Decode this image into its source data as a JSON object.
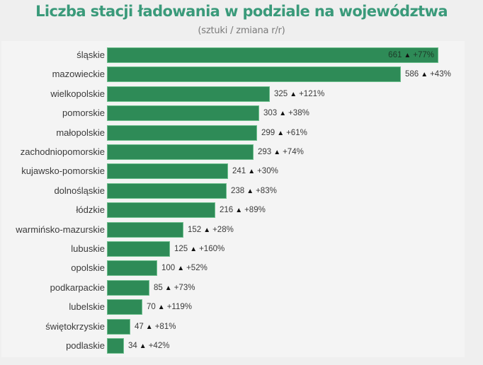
{
  "title": "Liczba stacji ładowania w podziale na województwa",
  "subtitle": "(sztuki / zmiana r/r)",
  "colors": {
    "bar": "#2e8b57",
    "title": "#3a9a7a",
    "background": "#efefef",
    "panel": "#f4f4f4"
  },
  "chart_data": {
    "type": "bar",
    "orientation": "horizontal",
    "title": "Liczba stacji ładowania w podziale na województwa",
    "subtitle": "(sztuki / zmiana r/r)",
    "xlabel": "",
    "ylabel": "",
    "grid": false,
    "legend": null,
    "xlim": [
      0,
      661
    ],
    "categories": [
      "śląskie",
      "mazowieckie",
      "wielkopolskie",
      "pomorskie",
      "małopolskie",
      "zachodniopomorskie",
      "kujawsko-pomorskie",
      "dolnośląskie",
      "łódzkie",
      "warmińsko-mazurskie",
      "lubuskie",
      "opolskie",
      "podkarpackie",
      "lubelskie",
      "świętokrzyskie",
      "podlaskie"
    ],
    "series": [
      {
        "name": "Liczba stacji (sztuki)",
        "values": [
          661,
          586,
          325,
          303,
          299,
          293,
          241,
          238,
          216,
          152,
          125,
          100,
          85,
          70,
          47,
          34
        ]
      },
      {
        "name": "Zmiana r/r",
        "values": [
          "+77%",
          "+43%",
          "+121%",
          "+38%",
          "+61%",
          "+74%",
          "+30%",
          "+83%",
          "+89%",
          "+28%",
          "+160%",
          "+52%",
          "+73%",
          "+119%",
          "+81%",
          "+42%"
        ]
      }
    ],
    "rows": [
      {
        "label": "śląskie",
        "value": 661,
        "change": "+77%",
        "trend": "▲"
      },
      {
        "label": "mazowieckie",
        "value": 586,
        "change": "+43%",
        "trend": "▲"
      },
      {
        "label": "wielkopolskie",
        "value": 325,
        "change": "+121%",
        "trend": "▲"
      },
      {
        "label": "pomorskie",
        "value": 303,
        "change": "+38%",
        "trend": "▲"
      },
      {
        "label": "małopolskie",
        "value": 299,
        "change": "+61%",
        "trend": "▲"
      },
      {
        "label": "zachodniopomorskie",
        "value": 293,
        "change": "+74%",
        "trend": "▲"
      },
      {
        "label": "kujawsko-pomorskie",
        "value": 241,
        "change": "+30%",
        "trend": "▲"
      },
      {
        "label": "dolnośląskie",
        "value": 238,
        "change": "+83%",
        "trend": "▲"
      },
      {
        "label": "łódzkie",
        "value": 216,
        "change": "+89%",
        "trend": "▲"
      },
      {
        "label": "warmińsko-mazurskie",
        "value": 152,
        "change": "+28%",
        "trend": "▲"
      },
      {
        "label": "lubuskie",
        "value": 125,
        "change": "+160%",
        "trend": "▲"
      },
      {
        "label": "opolskie",
        "value": 100,
        "change": "+52%",
        "trend": "▲"
      },
      {
        "label": "podkarpackie",
        "value": 85,
        "change": "+73%",
        "trend": "▲"
      },
      {
        "label": "lubelskie",
        "value": 70,
        "change": "+119%",
        "trend": "▲"
      },
      {
        "label": "świętokrzyskie",
        "value": 47,
        "change": "+81%",
        "trend": "▲"
      },
      {
        "label": "podlaskie",
        "value": 34,
        "change": "+42%",
        "trend": "▲"
      }
    ]
  }
}
